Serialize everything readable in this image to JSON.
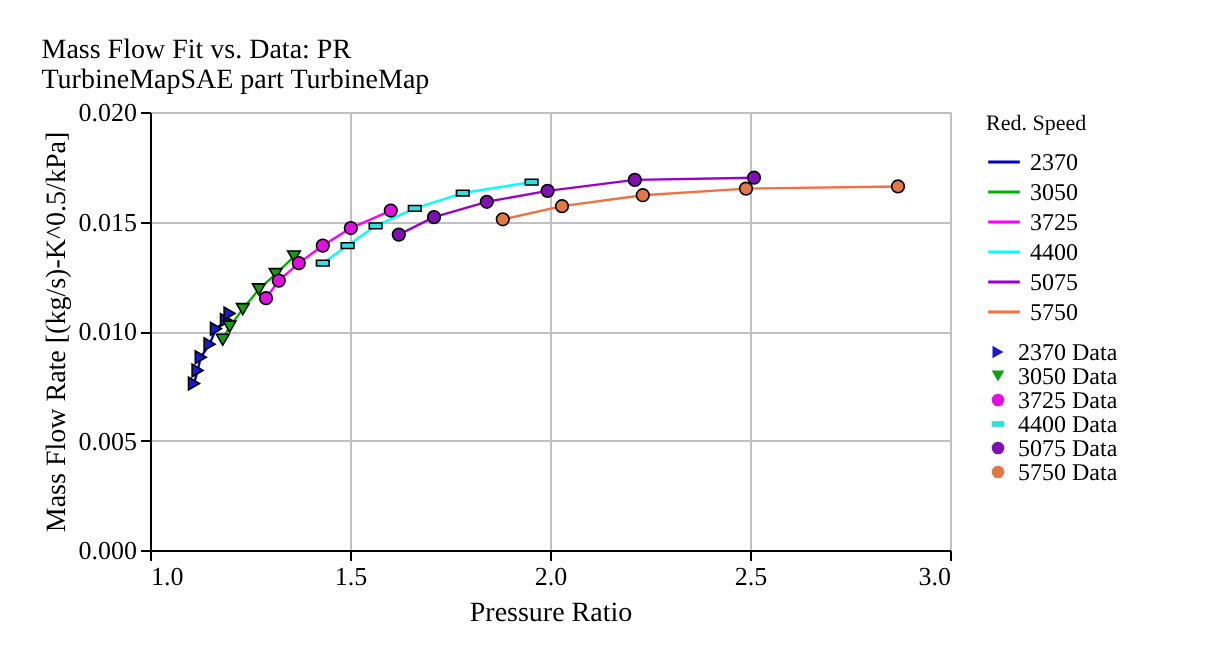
{
  "chart_data": {
    "type": "scatter",
    "title": "Mass Flow Fit vs. Data: PR",
    "subtitle": "TurbineMapSAE part TurbineMap",
    "xlabel": "Pressure Ratio",
    "ylabel": "Mass Flow Rate [(kg/s)-K^0.5/kPa]",
    "legend_title": "Red. Speed",
    "legend": "right",
    "grid": true,
    "xlim": [
      1.0,
      3.0
    ],
    "xticks": [
      {
        "value": 1.0,
        "label": "1.0"
      },
      {
        "value": 1.5,
        "label": "1.5"
      },
      {
        "value": 2.0,
        "label": "2.0"
      },
      {
        "value": 2.5,
        "label": "2.5"
      },
      {
        "value": 3.0,
        "label": "3.0"
      }
    ],
    "ylim": [
      0,
      0.02
    ],
    "yticks": [
      {
        "value": 0,
        "label": "0.000"
      },
      {
        "value": 0.005,
        "label": "0.005"
      },
      {
        "value": 0.01,
        "label": "0.010"
      },
      {
        "value": 0.015,
        "label": "0.015"
      },
      {
        "value": 0.02,
        "label": "0.020"
      }
    ],
    "series": [
      {
        "name": "2370",
        "type": "line",
        "color": "#0000cc",
        "x": [
          1.11,
          1.119,
          1.127,
          1.149,
          1.165,
          1.19,
          1.199
        ],
        "values": [
          0.0076,
          0.0082,
          0.0088,
          0.0094,
          0.0101,
          0.0105,
          0.0108
        ]
      },
      {
        "name": "3050",
        "type": "line",
        "color": "#00b000",
        "x": [
          1.182,
          1.199,
          1.232,
          1.272,
          1.314,
          1.36
        ],
        "values": [
          0.0096,
          0.0102,
          0.011,
          0.0119,
          0.0126,
          0.0134
        ]
      },
      {
        "name": "3725",
        "type": "line",
        "color": "#ff00ff",
        "x": [
          1.29,
          1.322,
          1.372,
          1.432,
          1.502,
          1.602
        ],
        "values": [
          0.0115,
          0.0123,
          0.0131,
          0.0139,
          0.0147,
          0.0155
        ]
      },
      {
        "name": "4400",
        "type": "line",
        "color": "#00ffff",
        "x": [
          1.432,
          1.494,
          1.564,
          1.662,
          1.782,
          1.954
        ],
        "values": [
          0.0131,
          0.0139,
          0.0148,
          0.0156,
          0.0163,
          0.0168
        ]
      },
      {
        "name": "5075",
        "type": "line",
        "color": "#9900cc",
        "x": [
          1.622,
          1.71,
          1.842,
          1.994,
          2.212,
          2.51
        ],
        "values": [
          0.0144,
          0.0152,
          0.0159,
          0.0164,
          0.0169,
          0.017
        ]
      },
      {
        "name": "5750",
        "type": "line",
        "color": "#f07040",
        "x": [
          1.882,
          2.03,
          2.232,
          2.49,
          2.87
        ],
        "values": [
          0.0151,
          0.0157,
          0.0162,
          0.0165,
          0.0166
        ]
      },
      {
        "name": "2370 Data",
        "marker": "triangle-right",
        "color": "#1a1ad0",
        "x": [
          1.11,
          1.119,
          1.127,
          1.149,
          1.165,
          1.19,
          1.199
        ],
        "values": [
          0.0076,
          0.0082,
          0.0088,
          0.0094,
          0.0101,
          0.0105,
          0.0108
        ]
      },
      {
        "name": "3050 Data",
        "marker": "triangle-down",
        "color": "#10a010",
        "x": [
          1.182,
          1.199,
          1.232,
          1.272,
          1.314,
          1.36
        ],
        "values": [
          0.0096,
          0.0102,
          0.011,
          0.0119,
          0.0126,
          0.0134
        ]
      },
      {
        "name": "3725 Data",
        "marker": "circle",
        "color": "#e010e0",
        "x": [
          1.29,
          1.322,
          1.372,
          1.432,
          1.502,
          1.602
        ],
        "values": [
          0.0115,
          0.0123,
          0.0131,
          0.0139,
          0.0147,
          0.0155
        ]
      },
      {
        "name": "4400 Data",
        "marker": "square",
        "color": "#30e0e0",
        "x": [
          1.432,
          1.494,
          1.564,
          1.662,
          1.782,
          1.954
        ],
        "values": [
          0.0131,
          0.0139,
          0.0148,
          0.0156,
          0.0163,
          0.0168
        ]
      },
      {
        "name": "5075 Data",
        "marker": "circle",
        "color": "#8010b0",
        "x": [
          1.622,
          1.71,
          1.842,
          1.994,
          2.212,
          2.51
        ],
        "values": [
          0.0144,
          0.0152,
          0.0159,
          0.0164,
          0.0169,
          0.017
        ]
      },
      {
        "name": "5750 Data",
        "marker": "circle",
        "color": "#e07848",
        "x": [
          1.882,
          2.03,
          2.232,
          2.49,
          2.87
        ],
        "values": [
          0.0151,
          0.0157,
          0.0162,
          0.0165,
          0.0166
        ]
      }
    ]
  }
}
